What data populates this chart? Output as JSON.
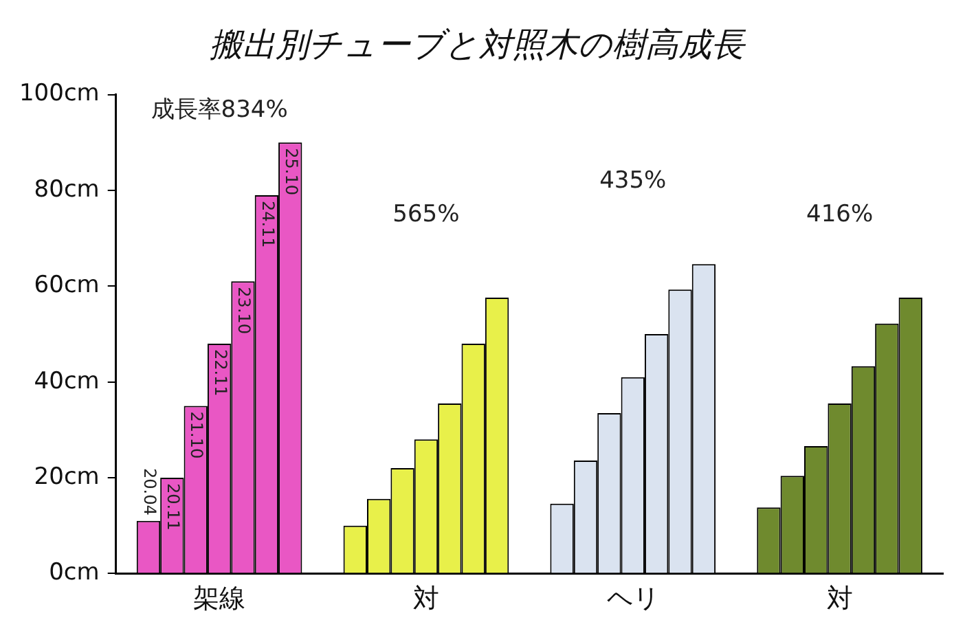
{
  "chart_data": {
    "type": "bar",
    "title": "搬出別チューブと対照木の樹高成長",
    "categories": [
      "架線",
      "対",
      "ヘリ",
      "対"
    ],
    "series": [
      {
        "name": "20.04",
        "colors": [
          "#e957c4",
          "#e8f04a",
          "#dae3f0",
          "#6f8a2e"
        ],
        "values": [
          11,
          10,
          14.6,
          13.8
        ]
      },
      {
        "name": "20.11",
        "colors": [
          "#e957c4",
          "#e8f04a",
          "#dae3f0",
          "#6f8a2e"
        ],
        "values": [
          20,
          15.6,
          23.6,
          20.4
        ]
      },
      {
        "name": "21.10",
        "colors": [
          "#e957c4",
          "#e8f04a",
          "#dae3f0",
          "#6f8a2e"
        ],
        "values": [
          35,
          22,
          33.5,
          26.6
        ]
      },
      {
        "name": "22.11",
        "colors": [
          "#e957c4",
          "#e8f04a",
          "#dae3f0",
          "#6f8a2e"
        ],
        "values": [
          48,
          28,
          41,
          35.5
        ]
      },
      {
        "name": "23.10",
        "colors": [
          "#e957c4",
          "#e8f04a",
          "#dae3f0",
          "#6f8a2e"
        ],
        "values": [
          61,
          35.5,
          50,
          43.3
        ]
      },
      {
        "name": "24.11",
        "colors": [
          "#e957c4",
          "#e8f04a",
          "#dae3f0",
          "#6f8a2e"
        ],
        "values": [
          79,
          48,
          59.3,
          52.2
        ]
      },
      {
        "name": "25.10",
        "colors": [
          "#e957c4",
          "#e8f04a",
          "#dae3f0",
          "#6f8a2e"
        ],
        "values": [
          90,
          57.6,
          64.6,
          57.6
        ]
      }
    ],
    "annotations": [
      "成長率834%",
      "565%",
      "435%",
      "416%"
    ],
    "ylim": [
      0,
      100
    ],
    "yticks": [
      {
        "value": 0,
        "label": "0cm"
      },
      {
        "value": 20,
        "label": "20cm"
      },
      {
        "value": 40,
        "label": "40cm"
      },
      {
        "value": 60,
        "label": "60cm"
      },
      {
        "value": 80,
        "label": "80cm"
      },
      {
        "value": 100,
        "label": "100cm"
      }
    ],
    "grid": false,
    "legend": false
  }
}
